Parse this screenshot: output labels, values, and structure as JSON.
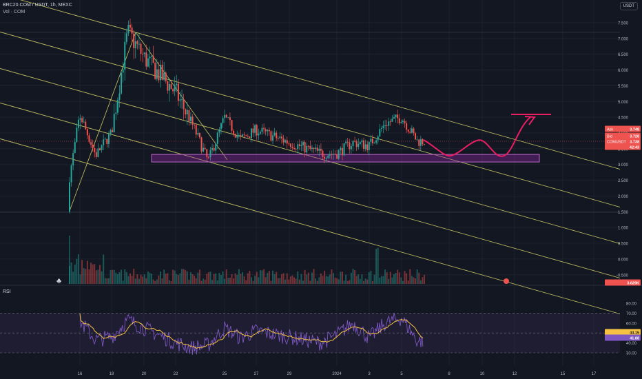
{
  "header": {
    "symbol": "BRC20.COM / USDT, 1h, MEXC",
    "volume_label": "Vol · COM",
    "currency_button": "USDT"
  },
  "rsi_label": "RSI",
  "price_tags": {
    "ask": {
      "label": "Ask",
      "value": "3.748"
    },
    "bid": {
      "label": "Bid",
      "value": "3.728"
    },
    "last": {
      "label": "COMUSDT",
      "value": "3.738",
      "countdown": "42:43"
    },
    "volume": "3.629K"
  },
  "rsi_tags": {
    "ma": "44.15",
    "rsi": "41.88"
  },
  "chart_data": [
    {
      "type": "candlestick",
      "title": "BRC20.COM / USDT, 1h, MEXC",
      "x_ticks": [
        "16",
        "18",
        "20",
        "22",
        "25",
        "27",
        "29",
        "2024",
        "3",
        "5",
        "8",
        "10",
        "12",
        "15",
        "17"
      ],
      "y_ticks": [
        "7.500",
        "7.000",
        "6.500",
        "6.000",
        "5.500",
        "5.000",
        "4.500",
        "4.000",
        "3.500",
        "3.000",
        "2.500",
        "2.000",
        "1.500",
        "1.000",
        "0.500",
        "0.000",
        "-0.500"
      ],
      "ylim": [
        -0.9,
        8.0
      ],
      "key_points": [
        {
          "x": "15 Dec",
          "price": 1.5
        },
        {
          "x": "16 Dec",
          "price": 4.6
        },
        {
          "x": "17 Dec",
          "price": 3.3
        },
        {
          "x": "18 Dec",
          "price": 4.0
        },
        {
          "x": "19 Dec",
          "price": 7.2
        },
        {
          "x": "20 Dec",
          "price": 6.4
        },
        {
          "x": "22 Dec",
          "price": 5.3
        },
        {
          "x": "23 Dec",
          "price": 4.3
        },
        {
          "x": "24 Dec",
          "price": 3.1
        },
        {
          "x": "25 Dec",
          "price": 4.5
        },
        {
          "x": "26 Dec",
          "price": 3.8
        },
        {
          "x": "27 Dec",
          "price": 4.1
        },
        {
          "x": "29 Dec",
          "price": 3.7
        },
        {
          "x": "31 Dec",
          "price": 3.35
        },
        {
          "x": "1 Jan",
          "price": 3.35
        },
        {
          "x": "2 Jan",
          "price": 3.7
        },
        {
          "x": "3 Jan",
          "price": 3.6
        },
        {
          "x": "4 Jan",
          "price": 4.3
        },
        {
          "x": "5 Jan",
          "price": 4.5
        },
        {
          "x": "6 Jan",
          "price": 3.74
        }
      ],
      "support_zone": {
        "low": 3.08,
        "high": 3.32
      },
      "last_price": 3.738,
      "colors": {
        "up": "#26a69a",
        "down": "#ef5350",
        "channel": "#d4d46a",
        "zone": "#9c27b0",
        "projection": "#e91e63"
      }
    },
    {
      "type": "line",
      "title": "RSI",
      "y_ticks": [
        "80.00",
        "70.00",
        "60.00",
        "50.00",
        "40.00",
        "30.00"
      ],
      "ylim": [
        26,
        85
      ],
      "band": [
        30,
        70
      ],
      "key_points": [
        {
          "x": "15 Dec",
          "value": 68
        },
        {
          "x": "16 Dec",
          "value": 62
        },
        {
          "x": "17 Dec",
          "value": 43
        },
        {
          "x": "18 Dec",
          "value": 46
        },
        {
          "x": "19 Dec",
          "value": 63
        },
        {
          "x": "20 Dec",
          "value": 55
        },
        {
          "x": "22 Dec",
          "value": 40
        },
        {
          "x": "23 Dec",
          "value": 35
        },
        {
          "x": "24 Dec",
          "value": 38
        },
        {
          "x": "25 Dec",
          "value": 55
        },
        {
          "x": "26 Dec",
          "value": 45
        },
        {
          "x": "27 Dec",
          "value": 52
        },
        {
          "x": "29 Dec",
          "value": 46
        },
        {
          "x": "31 Dec",
          "value": 40
        },
        {
          "x": "1 Jan",
          "value": 48
        },
        {
          "x": "2 Jan",
          "value": 60
        },
        {
          "x": "3 Jan",
          "value": 45
        },
        {
          "x": "4 Jan",
          "value": 60
        },
        {
          "x": "5 Jan",
          "value": 65
        },
        {
          "x": "6 Jan",
          "value": 41.88
        }
      ],
      "colors": {
        "rsi": "#7e57c2",
        "ma": "#f5c242"
      }
    }
  ]
}
